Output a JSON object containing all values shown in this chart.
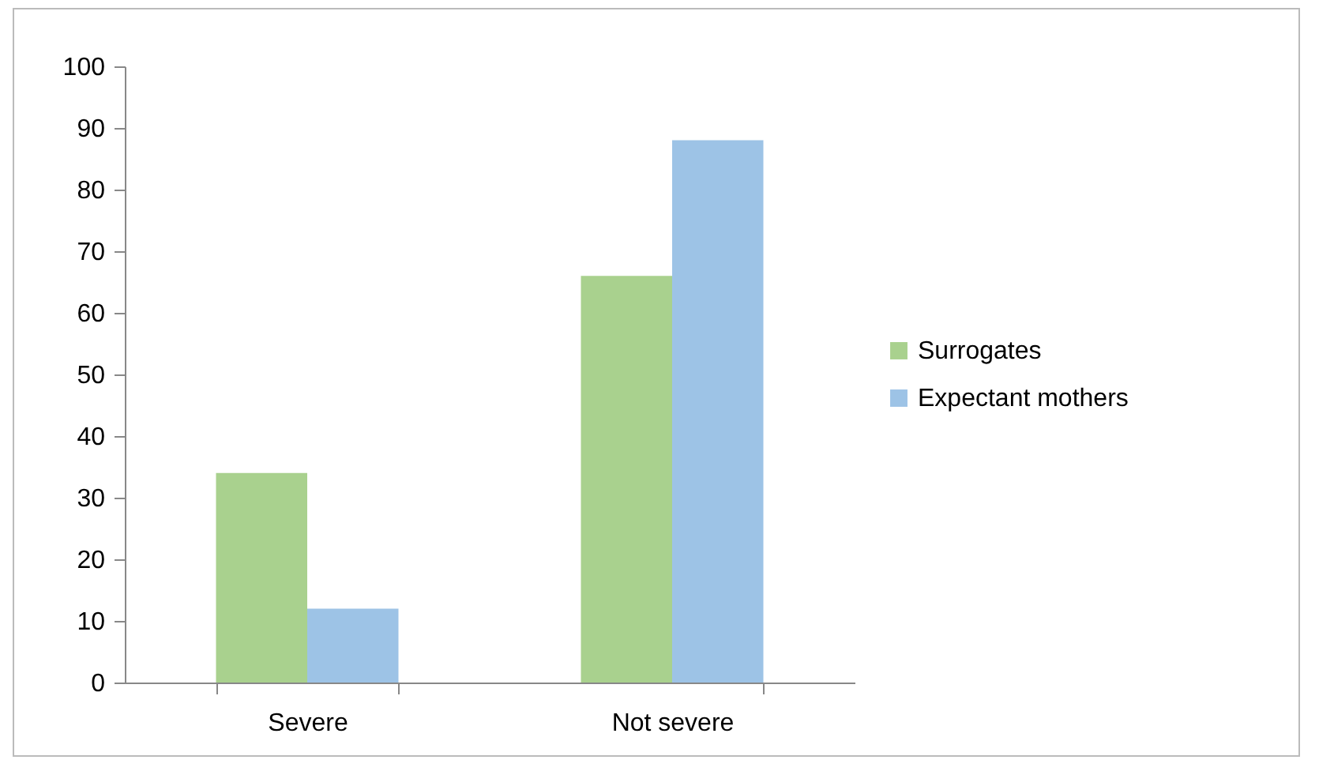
{
  "chart_data": {
    "type": "bar",
    "categories": [
      "Severe",
      "Not severe"
    ],
    "series": [
      {
        "name": "Surrogates",
        "color": "#a9d18e",
        "values": [
          34,
          66
        ]
      },
      {
        "name": "Expectant mothers",
        "color": "#9dc3e6",
        "values": [
          12,
          88
        ]
      }
    ],
    "ylim": [
      0,
      100
    ],
    "yticks": [
      0,
      10,
      20,
      30,
      40,
      50,
      60,
      70,
      80,
      90,
      100
    ],
    "grid": false,
    "legend": "right"
  }
}
